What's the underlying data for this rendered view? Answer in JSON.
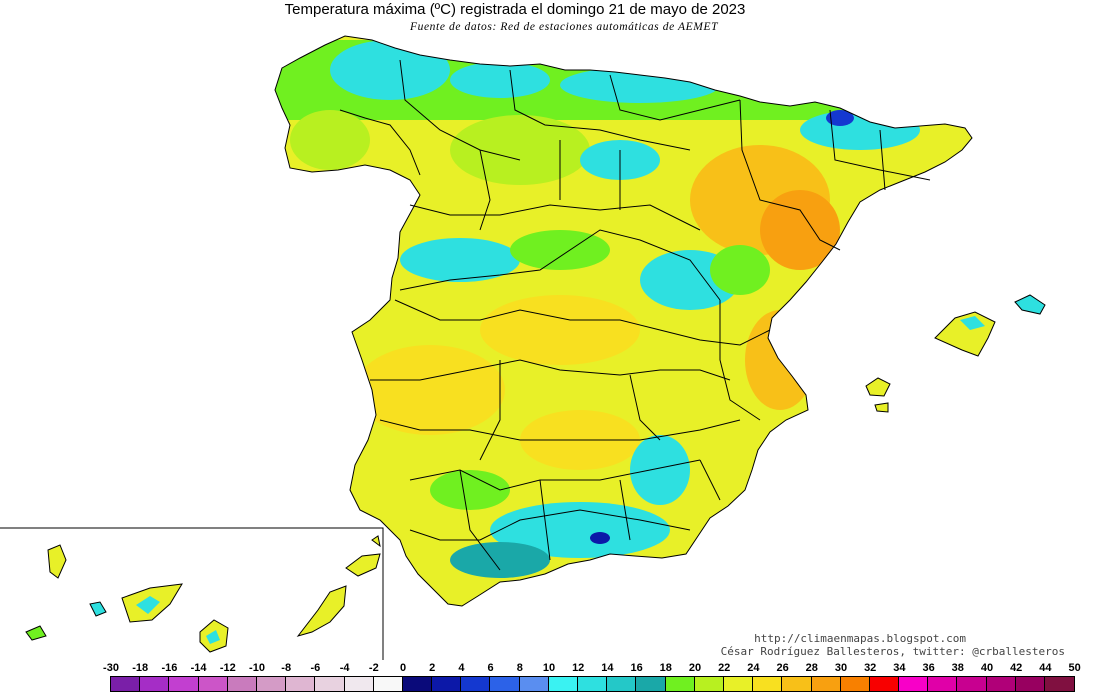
{
  "title": "Temperatura máxima (ºC) registrada el domingo 21 de mayo de 2023",
  "subtitle": "Fuente de datos: Red de estaciones automáticas de AEMET",
  "credits": {
    "blog": "http://climaenmapas.blogspot.com",
    "author": "César Rodríguez Ballesteros, twitter: @crballesteros"
  },
  "legend": {
    "labels": [
      "-30",
      "-18",
      "-16",
      "-14",
      "-12",
      "-10",
      "-8",
      "-6",
      "-4",
      "-2",
      "0",
      "2",
      "4",
      "6",
      "8",
      "10",
      "12",
      "14",
      "16",
      "18",
      "20",
      "22",
      "24",
      "26",
      "28",
      "30",
      "32",
      "34",
      "36",
      "38",
      "40",
      "42",
      "44",
      "50"
    ],
    "colors": [
      "#7a1fa8",
      "#a52dc6",
      "#c23fd0",
      "#cc55c8",
      "#c97bbd",
      "#d49bc6",
      "#dfb6d2",
      "#e8d2e0",
      "#f0e8ee",
      "#f8f8f8",
      "#0a0a7a",
      "#0c18a8",
      "#1438d0",
      "#2c62e8",
      "#5a8ef0",
      "#3af2f2",
      "#2ee0e0",
      "#24c8c8",
      "#1aa8a8",
      "#70f020",
      "#b8f020",
      "#e8f028",
      "#f8e020",
      "#f8c018",
      "#f8a010",
      "#f88000",
      "#f80000",
      "#f800c8",
      "#e000a8",
      "#c80090",
      "#b00078",
      "#980060",
      "#801040"
    ]
  },
  "map_colors": {
    "land_base": "#e8f028",
    "cool": "#70f020",
    "cold": "#2ee0e0",
    "coldest": "#1aa8a8",
    "very_cold": "#0c18a8",
    "warm": "#f8e020",
    "hot": "#f8c018",
    "hottest": "#f8a010",
    "borders": "#000000"
  }
}
